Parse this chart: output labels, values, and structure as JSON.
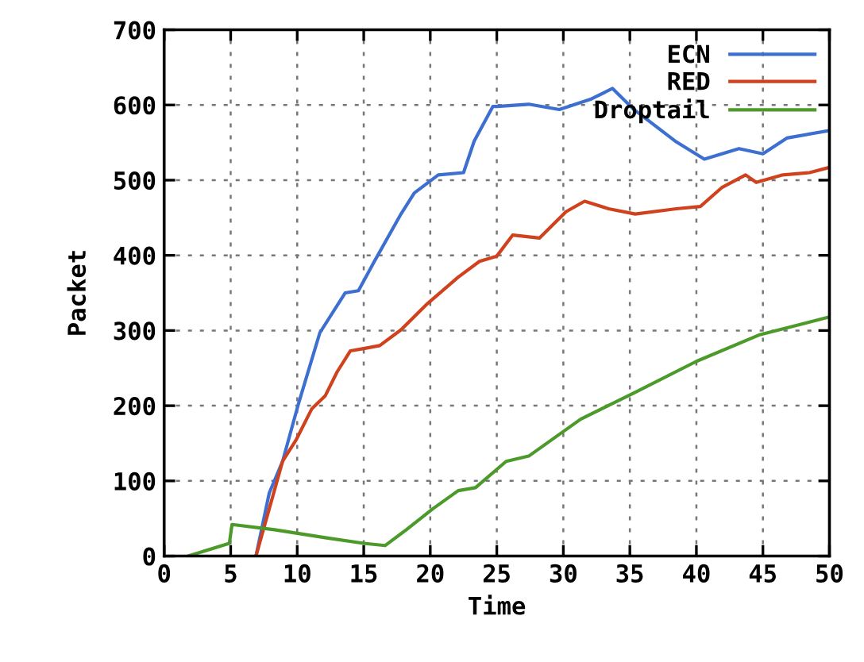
{
  "chart_data": {
    "type": "line",
    "xlabel": "Time",
    "ylabel": "Packet",
    "xlim": [
      0,
      50
    ],
    "ylim": [
      0,
      700
    ],
    "xticks": [
      0,
      5,
      10,
      15,
      20,
      25,
      30,
      35,
      40,
      45,
      50
    ],
    "yticks": [
      0,
      100,
      200,
      300,
      400,
      500,
      600,
      700
    ],
    "grid": true,
    "legend": "top right",
    "line_style": "solid",
    "series": [
      {
        "name": "ECN",
        "color": "#3c6fd0",
        "x": [
          6.9,
          7.9,
          8.9,
          10.1,
          11.7,
          13.6,
          14.6,
          15.8,
          17.8,
          18.8,
          20.6,
          22.5,
          23.3,
          24.7,
          25,
          27.4,
          29.7,
          32.1,
          33.7,
          35.3,
          38.4,
          40.6,
          43.2,
          45,
          46.8,
          50
        ],
        "values": [
          0,
          84,
          126,
          203,
          297,
          350,
          353,
          392,
          455,
          483,
          507,
          510,
          552,
          598,
          598,
          601,
          594,
          608,
          622,
          594,
          552,
          528,
          542,
          535,
          556,
          566
        ]
      },
      {
        "name": "RED",
        "color": "#d0421e",
        "x": [
          6.9,
          7.9,
          8.9,
          9.9,
          11.1,
          12.1,
          13,
          14,
          15,
          16.2,
          17.8,
          19.8,
          22.1,
          23.7,
          25,
          26.2,
          28.2,
          30.2,
          31.6,
          33.4,
          35.4,
          38.5,
          40.3,
          41.9,
          43.7,
          44.5,
          46.5,
          48.5,
          50
        ],
        "values": [
          0,
          63,
          126,
          154,
          196,
          213,
          245,
          273,
          276,
          280,
          301,
          336,
          371,
          392,
          399,
          427,
          423,
          458,
          472,
          462,
          455,
          462,
          465,
          490,
          507,
          497,
          507,
          510,
          517
        ]
      },
      {
        "name": "Droptail",
        "color": "#4c9a2a",
        "x": [
          1.8,
          4.9,
          5.1,
          8.3,
          12.3,
          15,
          16.6,
          18.2,
          20.2,
          22.1,
          23.4,
          25.7,
          27.4,
          31.3,
          35.3,
          40,
          44.7,
          50
        ],
        "values": [
          0,
          17,
          42,
          35,
          24,
          17,
          14,
          35,
          63,
          87,
          91,
          126,
          133,
          182,
          217,
          259,
          294,
          318
        ]
      }
    ]
  }
}
